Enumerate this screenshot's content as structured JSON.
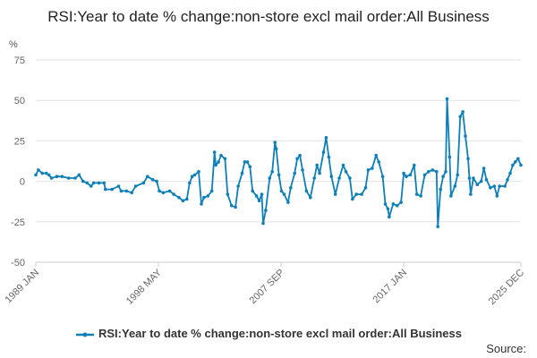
{
  "chart_data": {
    "type": "line",
    "title": "RSI:Year to date % change:non-store excl mail order:All Business",
    "unit_label": "%",
    "xlabel": "",
    "ylabel": "%",
    "ylim": [
      -50,
      75
    ],
    "yticks": [
      75,
      50,
      25,
      0,
      -25,
      -50
    ],
    "xlim": [
      1989.0,
      2025.92
    ],
    "xticks": [
      {
        "label": "1989 JAN",
        "value": 1989.0
      },
      {
        "label": "1998 MAY",
        "value": 1998.33
      },
      {
        "label": "2007 SEP",
        "value": 2007.67
      },
      {
        "label": "2017 JAN",
        "value": 2017.0
      },
      {
        "label": "2025 DEC",
        "value": 2025.92
      }
    ],
    "grid": true,
    "legend_position": "bottom",
    "source_text": "Source:",
    "series": [
      {
        "name": "RSI:Year to date % change:non-store excl mail order:All Business",
        "color": "#0f7fb8",
        "points": [
          [
            1989.0,
            4
          ],
          [
            1989.2,
            7
          ],
          [
            1989.5,
            5
          ],
          [
            1989.8,
            5
          ],
          [
            1990.0,
            4
          ],
          [
            1990.2,
            2
          ],
          [
            1990.6,
            3
          ],
          [
            1991.0,
            3
          ],
          [
            1991.5,
            2
          ],
          [
            1992.0,
            2
          ],
          [
            1992.3,
            4
          ],
          [
            1992.6,
            0
          ],
          [
            1992.9,
            -1
          ],
          [
            1993.2,
            -3
          ],
          [
            1993.4,
            -1
          ],
          [
            1993.8,
            -1
          ],
          [
            1994.2,
            -1
          ],
          [
            1994.3,
            -5
          ],
          [
            1994.8,
            -5
          ],
          [
            1995.3,
            -3
          ],
          [
            1995.5,
            -6
          ],
          [
            1995.9,
            -6
          ],
          [
            1996.3,
            -7
          ],
          [
            1996.6,
            -3
          ],
          [
            1997.2,
            -1
          ],
          [
            1997.5,
            3
          ],
          [
            1997.9,
            1
          ],
          [
            1998.2,
            0
          ],
          [
            1998.4,
            -6
          ],
          [
            1998.7,
            -7
          ],
          [
            1999.2,
            -6
          ],
          [
            1999.5,
            -8
          ],
          [
            1999.9,
            -10
          ],
          [
            2000.2,
            -12
          ],
          [
            2000.5,
            -11
          ],
          [
            2000.7,
            -1
          ],
          [
            2000.9,
            3
          ],
          [
            2001.1,
            4
          ],
          [
            2001.4,
            6
          ],
          [
            2001.6,
            -14
          ],
          [
            2001.8,
            -10
          ],
          [
            2002.1,
            -9
          ],
          [
            2002.4,
            -6
          ],
          [
            2002.6,
            18
          ],
          [
            2002.7,
            10
          ],
          [
            2002.9,
            12
          ],
          [
            2003.1,
            16
          ],
          [
            2003.4,
            14
          ],
          [
            2003.6,
            -8
          ],
          [
            2003.9,
            -15
          ],
          [
            2004.2,
            -16
          ],
          [
            2004.4,
            -3
          ],
          [
            2004.7,
            5
          ],
          [
            2004.9,
            12
          ],
          [
            2005.1,
            12
          ],
          [
            2005.3,
            9
          ],
          [
            2005.5,
            -6
          ],
          [
            2005.8,
            -9
          ],
          [
            2006.0,
            -12
          ],
          [
            2006.2,
            -8
          ],
          [
            2006.3,
            -26
          ],
          [
            2006.5,
            -18
          ],
          [
            2006.8,
            2
          ],
          [
            2007.0,
            6
          ],
          [
            2007.2,
            24
          ],
          [
            2007.3,
            20
          ],
          [
            2007.5,
            4
          ],
          [
            2007.7,
            -6
          ],
          [
            2007.9,
            -8
          ],
          [
            2008.2,
            -13
          ],
          [
            2008.4,
            -4
          ],
          [
            2008.7,
            5
          ],
          [
            2008.9,
            14
          ],
          [
            2009.1,
            16
          ],
          [
            2009.3,
            7
          ],
          [
            2009.6,
            -6
          ],
          [
            2009.9,
            -10
          ],
          [
            2010.2,
            2
          ],
          [
            2010.4,
            10
          ],
          [
            2010.6,
            5
          ],
          [
            2010.9,
            18
          ],
          [
            2011.1,
            27
          ],
          [
            2011.3,
            15
          ],
          [
            2011.5,
            3
          ],
          [
            2011.8,
            -8
          ],
          [
            2012.1,
            2
          ],
          [
            2012.4,
            10
          ],
          [
            2012.6,
            6
          ],
          [
            2012.9,
            2
          ],
          [
            2013.1,
            -11
          ],
          [
            2013.4,
            -8
          ],
          [
            2013.8,
            -8
          ],
          [
            2014.1,
            -4
          ],
          [
            2014.3,
            7
          ],
          [
            2014.6,
            8
          ],
          [
            2014.9,
            16
          ],
          [
            2015.1,
            12
          ],
          [
            2015.4,
            3
          ],
          [
            2015.6,
            -14
          ],
          [
            2015.8,
            -17
          ],
          [
            2015.9,
            -22
          ],
          [
            2016.2,
            -14
          ],
          [
            2016.5,
            -15
          ],
          [
            2016.8,
            -13
          ],
          [
            2017.0,
            5
          ],
          [
            2017.2,
            3
          ],
          [
            2017.5,
            4
          ],
          [
            2017.8,
            10
          ],
          [
            2018.0,
            -8
          ],
          [
            2018.3,
            -9
          ],
          [
            2018.6,
            4
          ],
          [
            2018.9,
            6
          ],
          [
            2019.2,
            7
          ],
          [
            2019.5,
            6
          ],
          [
            2019.6,
            -28
          ],
          [
            2019.8,
            -5
          ],
          [
            2020.0,
            3
          ],
          [
            2020.2,
            6
          ],
          [
            2020.3,
            51
          ],
          [
            2020.5,
            15
          ],
          [
            2020.6,
            -9
          ],
          [
            2020.9,
            -3
          ],
          [
            2021.1,
            4
          ],
          [
            2021.3,
            40
          ],
          [
            2021.5,
            43
          ],
          [
            2021.7,
            28
          ],
          [
            2021.9,
            14
          ],
          [
            2022.0,
            2
          ],
          [
            2022.1,
            -8
          ],
          [
            2022.3,
            2
          ],
          [
            2022.6,
            -2
          ],
          [
            2022.9,
            0
          ],
          [
            2023.1,
            8
          ],
          [
            2023.3,
            1
          ],
          [
            2023.6,
            -4
          ],
          [
            2023.9,
            -3
          ],
          [
            2024.1,
            -9
          ],
          [
            2024.3,
            -3
          ],
          [
            2024.7,
            -3
          ],
          [
            2024.9,
            1
          ],
          [
            2025.1,
            5
          ],
          [
            2025.3,
            10
          ],
          [
            2025.5,
            12
          ],
          [
            2025.7,
            14
          ],
          [
            2025.92,
            10
          ]
        ]
      }
    ]
  }
}
